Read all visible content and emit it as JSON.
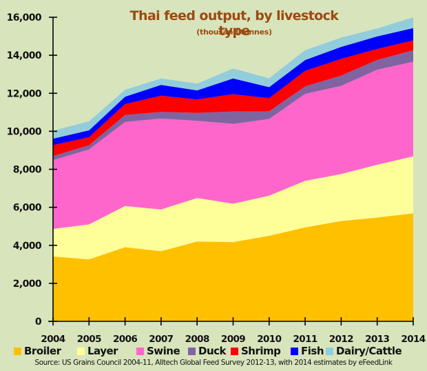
{
  "chart_data": {
    "type": "area",
    "stacked": true,
    "title": "Thai feed output, by livestock type",
    "subtitle": "(thousand tonnes)",
    "xlabel": "",
    "ylabel": "",
    "x": [
      "2004",
      "2005",
      "2006",
      "2007",
      "2008",
      "2009",
      "2010",
      "2011",
      "2012",
      "2013",
      "2014"
    ],
    "ylim": [
      0,
      16000
    ],
    "yticks": [
      0,
      2000,
      4000,
      6000,
      8000,
      10000,
      12000,
      14000,
      16000
    ],
    "ytick_labels": [
      "0",
      "2,000",
      "4,000",
      "6,000",
      "8,000",
      "10,000",
      "12,000",
      "14,000",
      "16,000"
    ],
    "grid": false,
    "legend_position": "bottom",
    "series": [
      {
        "name": "Broiler",
        "color": "#FFC000",
        "values": [
          3410,
          3260,
          3900,
          3690,
          4200,
          4170,
          4500,
          4940,
          5280,
          5460,
          5680
        ]
      },
      {
        "name": "Layer",
        "color": "#FFFF99",
        "values": [
          1450,
          1840,
          2170,
          2200,
          2290,
          2020,
          2110,
          2450,
          2470,
          2780,
          3000
        ]
      },
      {
        "name": "Swine",
        "color": "#FF66CC",
        "values": [
          3620,
          3940,
          4420,
          4780,
          4060,
          4200,
          4040,
          4580,
          4640,
          5000,
          4980
        ]
      },
      {
        "name": "Duck",
        "color": "#8064A2",
        "values": [
          220,
          220,
          360,
          350,
          420,
          650,
          400,
          390,
          540,
          510,
          600
        ]
      },
      {
        "name": "Shrimp",
        "color": "#FF0000",
        "values": [
          570,
          430,
          580,
          850,
          700,
          910,
          690,
          820,
          880,
          580,
          520
        ]
      },
      {
        "name": "Fish",
        "color": "#0000FF",
        "values": [
          340,
          360,
          390,
          570,
          480,
          830,
          580,
          570,
          630,
          660,
          650
        ]
      },
      {
        "name": "Dairy/Cattle",
        "color": "#92CDDC",
        "values": [
          420,
          470,
          360,
          340,
          360,
          520,
          470,
          520,
          490,
          420,
          560
        ]
      }
    ],
    "source": "Source: US Grains Council 2004-11, Alltech Global Feed Survey 2012-13, with 2014 estimates by eFeedLink"
  },
  "colors": {
    "background": "#D8E4BC",
    "title": "#9C4A0E",
    "axis": "#000000"
  }
}
